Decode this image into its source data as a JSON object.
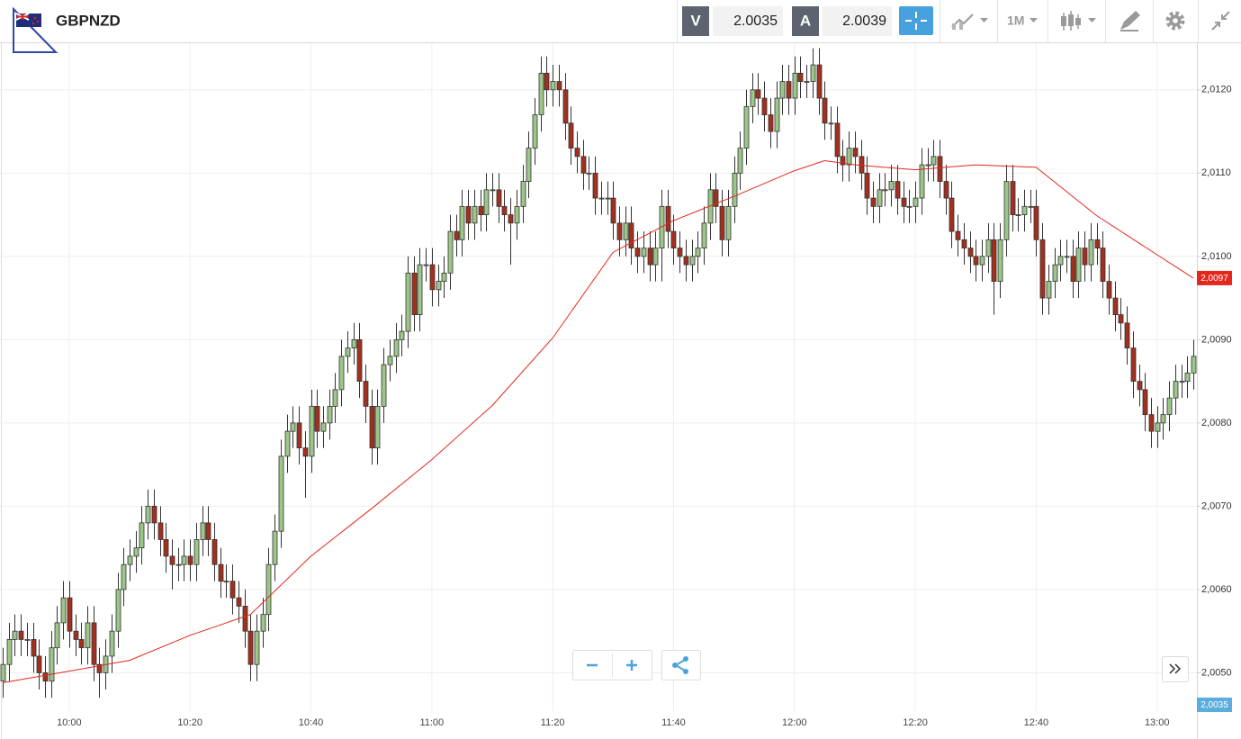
{
  "toolbar": {
    "symbol": "GBPNZD",
    "sell": {
      "label": "V",
      "price": "2.0035"
    },
    "buy": {
      "label": "A",
      "price": "2.0039"
    },
    "timeframe": "1M"
  },
  "chart_data": {
    "type": "candlestick",
    "x": [
      "09:49",
      "09:50",
      "09:51",
      "09:52",
      "09:53",
      "09:54",
      "09:55",
      "09:56",
      "09:57",
      "09:58",
      "09:59",
      "10:00",
      "10:01",
      "10:02",
      "10:03",
      "10:04",
      "10:05",
      "10:06",
      "10:07",
      "10:08",
      "10:09",
      "10:10",
      "10:11",
      "10:12",
      "10:13",
      "10:14",
      "10:15",
      "10:16",
      "10:17",
      "10:18",
      "10:19",
      "10:20",
      "10:21",
      "10:22",
      "10:23",
      "10:24",
      "10:25",
      "10:26",
      "10:27",
      "10:28",
      "10:29",
      "10:30",
      "10:31",
      "10:32",
      "10:33",
      "10:34",
      "10:35",
      "10:36",
      "10:37",
      "10:38",
      "10:39",
      "10:40",
      "10:41",
      "10:42",
      "10:43",
      "10:44",
      "10:45",
      "10:46",
      "10:47",
      "10:48",
      "10:49",
      "10:50",
      "10:51",
      "10:52",
      "10:53",
      "10:54",
      "10:55",
      "10:56",
      "10:57",
      "10:58",
      "10:59",
      "11:00",
      "11:01",
      "11:02",
      "11:03",
      "11:04",
      "11:05",
      "11:06",
      "11:07",
      "11:08",
      "11:09",
      "11:10",
      "11:11",
      "11:12",
      "11:13",
      "11:14",
      "11:15",
      "11:16",
      "11:17",
      "11:18",
      "11:19",
      "11:20",
      "11:21",
      "11:22",
      "11:23",
      "11:24",
      "11:25",
      "11:26",
      "11:27",
      "11:28",
      "11:29",
      "11:30",
      "11:31",
      "11:32",
      "11:33",
      "11:34",
      "11:35",
      "11:36",
      "11:37",
      "11:38",
      "11:39",
      "11:40",
      "11:41",
      "11:42",
      "11:43",
      "11:44",
      "11:45",
      "11:46",
      "11:47",
      "11:48",
      "11:49",
      "11:50",
      "11:51",
      "11:52",
      "11:53",
      "11:54",
      "11:55",
      "11:56",
      "11:57",
      "11:58",
      "11:59",
      "12:00",
      "12:01",
      "12:02",
      "12:03",
      "12:04",
      "12:05",
      "12:06",
      "12:07",
      "12:08",
      "12:09",
      "12:10",
      "12:11",
      "12:12",
      "12:13",
      "12:14",
      "12:15",
      "12:16",
      "12:17",
      "12:18",
      "12:19",
      "12:20",
      "12:21",
      "12:22",
      "12:23",
      "12:24",
      "12:25",
      "12:26",
      "12:27",
      "12:28",
      "12:29",
      "12:30",
      "12:31",
      "12:32",
      "12:33",
      "12:34",
      "12:35",
      "12:36",
      "12:37",
      "12:38",
      "12:39",
      "12:40",
      "12:41",
      "12:42",
      "12:43",
      "12:44",
      "12:45",
      "12:46",
      "12:47",
      "12:48",
      "12:49",
      "12:50",
      "12:51",
      "12:52",
      "12:53",
      "12:54",
      "12:55",
      "12:56",
      "12:57",
      "12:58",
      "12:59",
      "13:00",
      "13:01",
      "13:02",
      "13:03",
      "13:04",
      "13:05",
      "13:06"
    ],
    "open": [
      2.0049,
      2.0051,
      2.0054,
      2.0055,
      2.0054,
      2.0054,
      2.0052,
      2.005,
      2.0049,
      2.0053,
      2.0056,
      2.0059,
      2.0055,
      2.0054,
      2.0053,
      2.0056,
      2.0051,
      2.005,
      2.0052,
      2.0055,
      2.006,
      2.0063,
      2.0064,
      2.0065,
      2.0068,
      2.007,
      2.0068,
      2.0066,
      2.0064,
      2.0063,
      2.0063,
      2.0064,
      2.0063,
      2.0066,
      2.0068,
      2.0066,
      2.0063,
      2.0061,
      2.0061,
      2.0059,
      2.0058,
      2.0055,
      2.0051,
      2.0055,
      2.0057,
      2.0063,
      2.0067,
      2.0076,
      2.0079,
      2.008,
      2.0077,
      2.0076,
      2.0082,
      2.0079,
      2.008,
      2.0082,
      2.0084,
      2.0088,
      2.0089,
      2.009,
      2.0085,
      2.0082,
      2.0077,
      2.0082,
      2.0087,
      2.0088,
      2.009,
      2.0091,
      2.0098,
      2.0093,
      2.0099,
      2.0099,
      2.0096,
      2.0097,
      2.0098,
      2.0103,
      2.0102,
      2.0106,
      2.0104,
      2.0106,
      2.0105,
      2.0108,
      2.0108,
      2.0106,
      2.0105,
      2.0104,
      2.0106,
      2.0109,
      2.0113,
      2.0117,
      2.0122,
      2.012,
      2.0121,
      2.012,
      2.0116,
      2.0113,
      2.0112,
      2.011,
      2.011,
      2.0107,
      2.0107,
      2.0107,
      2.0104,
      2.0102,
      2.0104,
      2.0101,
      2.01,
      2.0101,
      2.0099,
      2.0101,
      2.0106,
      2.0103,
      2.0101,
      2.01,
      2.0099,
      2.01,
      2.0101,
      2.0104,
      2.0108,
      2.0106,
      2.0102,
      2.0106,
      2.011,
      2.0113,
      2.0118,
      2.012,
      2.0119,
      2.0117,
      2.0115,
      2.0119,
      2.0121,
      2.0119,
      2.0122,
      2.0121,
      2.0121,
      2.0123,
      2.0119,
      2.0116,
      2.0116,
      2.0112,
      2.0111,
      2.0113,
      2.0112,
      2.011,
      2.0107,
      2.0106,
      2.0108,
      2.0108,
      2.0109,
      2.0107,
      2.0106,
      2.0106,
      2.0107,
      2.0111,
      2.0111,
      2.0112,
      2.0109,
      2.0107,
      2.0103,
      2.0102,
      2.0101,
      2.01,
      2.0099,
      2.01,
      2.0102,
      2.0097,
      2.0102,
      2.0109,
      2.0105,
      2.0105,
      2.0106,
      2.0106,
      2.0102,
      2.0095,
      2.0097,
      2.0099,
      2.01,
      2.01,
      2.0097,
      2.0101,
      2.0099,
      2.0102,
      2.0101,
      2.0097,
      2.0095,
      2.0093,
      2.0092,
      2.0089,
      2.0085,
      2.0084,
      2.0081,
      2.0079,
      2.008,
      2.0081,
      2.0083,
      2.0085,
      2.0085,
      2.0086
    ],
    "high": [
      2.0053,
      2.0056,
      2.0057,
      2.0057,
      2.0056,
      2.0056,
      2.0054,
      2.0052,
      2.0055,
      2.0058,
      2.0061,
      2.0061,
      2.0057,
      2.0056,
      2.0058,
      2.0058,
      2.0053,
      2.0054,
      2.0057,
      2.0062,
      2.0065,
      2.0066,
      2.0067,
      2.007,
      2.0072,
      2.0072,
      2.007,
      2.0068,
      2.0066,
      2.0065,
      2.0066,
      2.0066,
      2.0068,
      2.007,
      2.007,
      2.0068,
      2.0065,
      2.0063,
      2.0063,
      2.0061,
      2.006,
      2.0057,
      2.0057,
      2.0059,
      2.0065,
      2.0069,
      2.0078,
      2.0081,
      2.0082,
      2.0082,
      2.0079,
      2.0084,
      2.0084,
      2.0082,
      2.0084,
      2.0086,
      2.009,
      2.0091,
      2.0092,
      2.0092,
      2.0087,
      2.0084,
      2.0084,
      2.0089,
      2.009,
      2.0092,
      2.0093,
      2.01,
      2.01,
      2.0101,
      2.0101,
      2.0101,
      2.0099,
      2.01,
      2.0105,
      2.0105,
      2.0108,
      2.0108,
      2.0108,
      2.0108,
      2.011,
      2.011,
      2.011,
      2.0108,
      2.0107,
      2.0108,
      2.0111,
      2.0115,
      2.0119,
      2.0124,
      2.0124,
      2.0123,
      2.0123,
      2.0122,
      2.0118,
      2.0115,
      2.0114,
      2.0112,
      2.0112,
      2.0109,
      2.0109,
      2.0109,
      2.0106,
      2.0106,
      2.0106,
      2.0103,
      2.0103,
      2.0103,
      2.0103,
      2.0108,
      2.0108,
      2.0105,
      2.0103,
      2.0102,
      2.0102,
      2.0103,
      2.0106,
      2.011,
      2.011,
      2.0108,
      2.0108,
      2.0112,
      2.0115,
      2.012,
      2.0122,
      2.0122,
      2.0121,
      2.0119,
      2.0121,
      2.0123,
      2.0123,
      2.0124,
      2.0124,
      2.0123,
      2.0125,
      2.0125,
      2.0121,
      2.0118,
      2.0118,
      2.0114,
      2.0115,
      2.0115,
      2.0114,
      2.0112,
      2.0109,
      2.011,
      2.011,
      2.0111,
      2.0111,
      2.0109,
      2.0108,
      2.0109,
      2.0113,
      2.0113,
      2.0114,
      2.0114,
      2.0111,
      2.0109,
      2.0105,
      2.0104,
      2.0103,
      2.0102,
      2.0102,
      2.0104,
      2.0104,
      2.0104,
      2.0111,
      2.0111,
      2.0107,
      2.0108,
      2.0108,
      2.0108,
      2.0104,
      2.0099,
      2.0101,
      2.0102,
      2.0102,
      2.0102,
      2.0103,
      2.0103,
      2.0104,
      2.0104,
      2.0103,
      2.0099,
      2.0097,
      2.0095,
      2.0094,
      2.0091,
      2.0087,
      2.0086,
      2.0083,
      2.0082,
      2.0083,
      2.0085,
      2.0087,
      2.0087,
      2.0088,
      2.009
    ],
    "low": [
      2.0047,
      2.0049,
      2.0052,
      2.0052,
      2.0052,
      2.005,
      2.0048,
      2.0047,
      2.0047,
      2.0051,
      2.0054,
      2.0053,
      2.0052,
      2.0051,
      2.0051,
      2.0049,
      2.0047,
      2.0048,
      2.005,
      2.0053,
      2.0058,
      2.0061,
      2.0062,
      2.0063,
      2.0066,
      2.0066,
      2.0064,
      2.0062,
      2.006,
      2.0061,
      2.0061,
      2.0061,
      2.0061,
      2.0064,
      2.0064,
      2.0061,
      2.0059,
      2.0059,
      2.0057,
      2.0056,
      2.0053,
      2.0049,
      2.0049,
      2.0053,
      2.0055,
      2.0061,
      2.0065,
      2.0074,
      2.0077,
      2.0075,
      2.0071,
      2.0074,
      2.0077,
      2.0077,
      2.0078,
      2.008,
      2.0082,
      2.0086,
      2.0087,
      2.0083,
      2.008,
      2.0075,
      2.0075,
      2.008,
      2.0085,
      2.0086,
      2.0088,
      2.0089,
      2.0091,
      2.0091,
      2.0097,
      2.0094,
      2.0094,
      2.0095,
      2.0096,
      2.01,
      2.01,
      2.0102,
      2.0102,
      2.0103,
      2.0103,
      2.0106,
      2.0104,
      2.0103,
      2.0099,
      2.0102,
      2.0104,
      2.0107,
      2.0111,
      2.0115,
      2.0118,
      2.0118,
      2.0118,
      2.0114,
      2.0111,
      2.011,
      2.0108,
      2.0108,
      2.0105,
      2.0105,
      2.0105,
      2.0102,
      2.01,
      2.01,
      2.0099,
      2.0098,
      2.0098,
      2.0097,
      2.0097,
      2.0097,
      2.0101,
      2.0099,
      2.0098,
      2.0097,
      2.0097,
      2.0098,
      2.0099,
      2.0102,
      2.0104,
      2.01,
      2.01,
      2.0104,
      2.0108,
      2.0111,
      2.0116,
      2.0117,
      2.0115,
      2.0113,
      2.0113,
      2.0117,
      2.0117,
      2.0117,
      2.0119,
      2.0119,
      2.0119,
      2.0117,
      2.0114,
      2.0114,
      2.011,
      2.0109,
      2.0109,
      2.011,
      2.0108,
      2.0105,
      2.0104,
      2.0104,
      2.0106,
      2.0106,
      2.0105,
      2.0104,
      2.0104,
      2.0104,
      2.0105,
      2.0109,
      2.0109,
      2.0107,
      2.0105,
      2.0101,
      2.01,
      2.0099,
      2.0098,
      2.0097,
      2.0097,
      2.0098,
      2.0093,
      2.0095,
      2.01,
      2.0103,
      2.0103,
      2.0103,
      2.0104,
      2.01,
      2.0093,
      2.0093,
      2.0095,
      2.0097,
      2.0098,
      2.0095,
      2.0095,
      2.0097,
      2.0097,
      2.0099,
      2.0095,
      2.0093,
      2.0091,
      2.009,
      2.0087,
      2.0083,
      2.0082,
      2.0079,
      2.0077,
      2.0077,
      2.0078,
      2.0079,
      2.0081,
      2.0083,
      2.0083,
      2.0084
    ],
    "close": [
      2.0051,
      2.0054,
      2.0055,
      2.0054,
      2.0054,
      2.0052,
      2.005,
      2.0049,
      2.0053,
      2.0056,
      2.0059,
      2.0055,
      2.0054,
      2.0053,
      2.0056,
      2.0051,
      2.005,
      2.0052,
      2.0055,
      2.006,
      2.0063,
      2.0064,
      2.0065,
      2.0068,
      2.007,
      2.0068,
      2.0066,
      2.0064,
      2.0063,
      2.0063,
      2.0064,
      2.0063,
      2.0066,
      2.0068,
      2.0066,
      2.0063,
      2.0061,
      2.0061,
      2.0059,
      2.0058,
      2.0055,
      2.0051,
      2.0055,
      2.0057,
      2.0063,
      2.0067,
      2.0076,
      2.0079,
      2.008,
      2.0077,
      2.0076,
      2.0082,
      2.0079,
      2.008,
      2.0082,
      2.0084,
      2.0088,
      2.0089,
      2.009,
      2.0085,
      2.0082,
      2.0077,
      2.0082,
      2.0087,
      2.0088,
      2.009,
      2.0091,
      2.0098,
      2.0093,
      2.0099,
      2.0099,
      2.0096,
      2.0097,
      2.0098,
      2.0103,
      2.0102,
      2.0106,
      2.0104,
      2.0106,
      2.0105,
      2.0108,
      2.0108,
      2.0106,
      2.0105,
      2.0104,
      2.0106,
      2.0109,
      2.0113,
      2.0117,
      2.0122,
      2.012,
      2.0121,
      2.012,
      2.0116,
      2.0113,
      2.0112,
      2.011,
      2.011,
      2.0107,
      2.0107,
      2.0107,
      2.0104,
      2.0102,
      2.0104,
      2.0101,
      2.01,
      2.0101,
      2.0099,
      2.0101,
      2.0106,
      2.0103,
      2.0101,
      2.01,
      2.0099,
      2.01,
      2.0101,
      2.0104,
      2.0108,
      2.0106,
      2.0102,
      2.0106,
      2.011,
      2.0113,
      2.0118,
      2.012,
      2.0119,
      2.0117,
      2.0115,
      2.0119,
      2.0121,
      2.0119,
      2.0122,
      2.0121,
      2.0121,
      2.0123,
      2.0119,
      2.0116,
      2.0116,
      2.0112,
      2.0111,
      2.0113,
      2.0112,
      2.011,
      2.0107,
      2.0106,
      2.0108,
      2.0108,
      2.0109,
      2.0107,
      2.0106,
      2.0106,
      2.0107,
      2.0111,
      2.0111,
      2.0112,
      2.0109,
      2.0107,
      2.0103,
      2.0102,
      2.0101,
      2.01,
      2.0099,
      2.01,
      2.0102,
      2.0097,
      2.0102,
      2.0109,
      2.0105,
      2.0105,
      2.0106,
      2.0106,
      2.0102,
      2.0095,
      2.0097,
      2.0099,
      2.01,
      2.01,
      2.0097,
      2.0101,
      2.0099,
      2.0102,
      2.0101,
      2.0097,
      2.0095,
      2.0093,
      2.0092,
      2.0089,
      2.0085,
      2.0084,
      2.0081,
      2.0079,
      2.008,
      2.0081,
      2.0083,
      2.0085,
      2.0085,
      2.0086,
      2.0088
    ],
    "up_color": "#9cc68a",
    "down_color": "#a3301e",
    "wick_color": "#333333",
    "ylim": [
      2.00454,
      2.01256
    ],
    "yticks": [
      {
        "value": 2.005,
        "label": "2,0050"
      },
      {
        "value": 2.006,
        "label": "2,0060"
      },
      {
        "value": 2.007,
        "label": "2,0070"
      },
      {
        "value": 2.008,
        "label": "2,0080"
      },
      {
        "value": 2.009,
        "label": "2,0090"
      },
      {
        "value": 2.01,
        "label": "2,0100"
      },
      {
        "value": 2.011,
        "label": "2,0110"
      },
      {
        "value": 2.012,
        "label": "2,0120"
      }
    ],
    "xticks": [
      "10:00",
      "10:20",
      "10:40",
      "11:00",
      "11:20",
      "11:40",
      "12:00",
      "12:20",
      "12:40",
      "13:00"
    ],
    "grid": true,
    "ma": {
      "color": "#e3271c",
      "x": [
        "09:49",
        "10:00",
        "10:10",
        "10:20",
        "10:30",
        "10:40",
        "10:50",
        "11:00",
        "11:10",
        "11:20",
        "11:30",
        "11:40",
        "11:50",
        "12:00",
        "12:05",
        "12:10",
        "12:20",
        "12:30",
        "12:40",
        "12:50",
        "13:00",
        "13:06"
      ],
      "values": [
        2.00488,
        2.00502,
        2.00515,
        2.00545,
        2.0057,
        2.0064,
        2.00697,
        2.00756,
        2.00821,
        2.00902,
        2.01005,
        2.01043,
        2.01072,
        2.01103,
        2.01115,
        2.0111,
        2.01104,
        2.0111,
        2.01107,
        2.01049,
        2.01002,
        2.00974
      ],
      "value_labels": [
        null,
        null,
        null,
        null,
        null,
        null,
        null,
        null,
        null,
        null,
        null,
        null,
        null,
        null,
        null,
        null,
        null,
        null,
        null,
        null,
        null,
        "2,0097"
      ]
    },
    "bid": {
      "value": 2.0035,
      "label": "2,0035",
      "color": "#5aaedb"
    }
  }
}
